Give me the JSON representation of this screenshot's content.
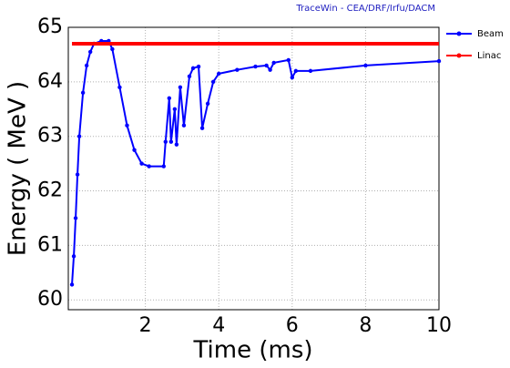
{
  "chart_data": {
    "type": "line",
    "header": "TraceWin - CEA/DRF/Irfu/DACM",
    "xlabel": "Time (ms)",
    "ylabel": "Energy ( MeV )",
    "xlim": [
      -0.1,
      10
    ],
    "ylim": [
      59.82,
      65
    ],
    "xticks": [
      2,
      4,
      6,
      8,
      10
    ],
    "yticks": [
      60,
      61,
      62,
      63,
      64,
      65
    ],
    "grid": true,
    "legend": "right",
    "x": [
      0,
      0.05,
      0.1,
      0.15,
      0.2,
      0.3,
      0.4,
      0.5,
      0.6,
      0.8,
      1.0,
      1.1,
      1.3,
      1.5,
      1.7,
      1.9,
      2.1,
      2.5,
      2.55,
      2.65,
      2.7,
      2.8,
      2.85,
      2.95,
      3.05,
      3.2,
      3.3,
      3.45,
      3.55,
      3.7,
      3.85,
      4.0,
      4.5,
      5.0,
      5.3,
      5.4,
      5.5,
      5.9,
      6.0,
      6.1,
      6.5,
      8,
      10
    ],
    "series": [
      {
        "name": "Beam",
        "color": "#0000ff",
        "values": [
          60.28,
          60.8,
          61.5,
          62.3,
          63.0,
          63.8,
          64.3,
          64.55,
          64.7,
          64.75,
          64.75,
          64.6,
          63.9,
          63.2,
          62.75,
          62.5,
          62.45,
          62.45,
          62.9,
          63.7,
          62.9,
          63.5,
          62.85,
          63.9,
          63.2,
          64.1,
          64.25,
          64.28,
          63.15,
          63.6,
          64.0,
          64.15,
          64.22,
          64.28,
          64.3,
          64.22,
          64.35,
          64.4,
          64.08,
          64.2,
          64.2,
          64.3,
          64.38
        ]
      },
      {
        "name": "Linac",
        "color": "#ff0000",
        "values": [
          64.7,
          64.7,
          64.7,
          64.7,
          64.7,
          64.7,
          64.7,
          64.7,
          64.7,
          64.7,
          64.7,
          64.7,
          64.7,
          64.7,
          64.7,
          64.7,
          64.7,
          64.7,
          64.7,
          64.7,
          64.7,
          64.7,
          64.7,
          64.7,
          64.7,
          64.7,
          64.7,
          64.7,
          64.7,
          64.7,
          64.7,
          64.7,
          64.7,
          64.7,
          64.7,
          64.7,
          64.7,
          64.7,
          64.7,
          64.7,
          64.7,
          64.7,
          64.7
        ]
      }
    ]
  }
}
